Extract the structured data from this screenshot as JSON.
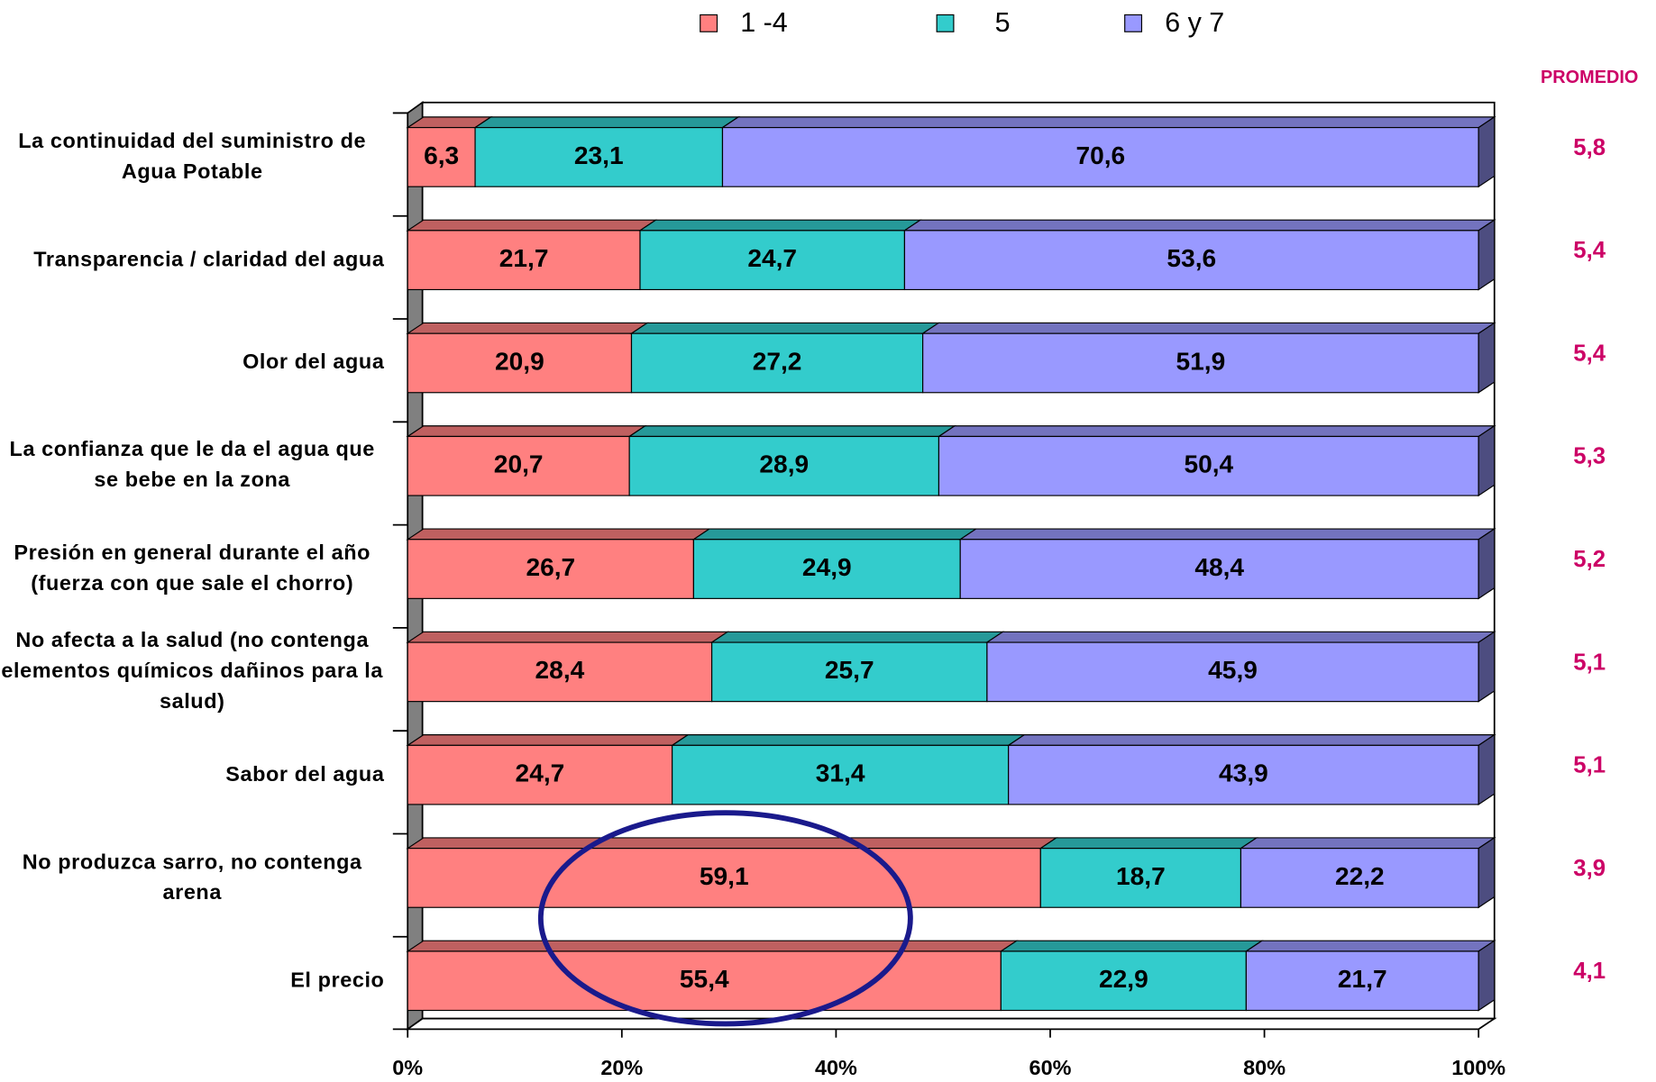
{
  "chart_data": {
    "type": "stacked_barh",
    "categories": [
      "La continuidad del suministro de Agua Potable",
      "Transparencia / claridad del agua",
      "Olor del agua",
      "La confianza que le da el agua que se bebe en la zona",
      "Presión en general durante el año (fuerza con que sale el chorro)",
      "No afecta a la salud (no contenga elementos químicos dañinos para la salud)",
      "Sabor del agua",
      "No produzca sarro, no contenga arena",
      "El precio"
    ],
    "series": [
      {
        "name": "1 -4",
        "color": "#ff8080",
        "values": [
          6.3,
          21.7,
          20.9,
          20.7,
          26.7,
          28.4,
          24.7,
          59.1,
          55.4
        ],
        "value_labels": [
          "6,3",
          "21,7",
          "20,9",
          "20,7",
          "26,7",
          "28,4",
          "24,7",
          "59,1",
          "55,4"
        ]
      },
      {
        "name": "5",
        "color": "#33cccc",
        "values": [
          23.1,
          24.7,
          27.2,
          28.9,
          24.9,
          25.7,
          31.4,
          18.7,
          22.9
        ],
        "value_labels": [
          "23,1",
          "24,7",
          "27,2",
          "28,9",
          "24,9",
          "25,7",
          "31,4",
          "18,7",
          "22,9"
        ]
      },
      {
        "name": "6 y 7",
        "color": "#9999ff",
        "values": [
          70.6,
          53.6,
          51.9,
          50.4,
          48.4,
          45.9,
          43.9,
          22.2,
          21.7
        ],
        "value_labels": [
          "70,6",
          "53,6",
          "51,9",
          "50,4",
          "48,4",
          "45,9",
          "43,9",
          "22,2",
          "21,7"
        ]
      }
    ],
    "average_title": "PROMEDIO",
    "averages": [
      5.8,
      5.4,
      5.4,
      5.3,
      5.2,
      5.1,
      5.1,
      3.9,
      4.1
    ],
    "average_labels": [
      "5,8",
      "5,4",
      "5,4",
      "5,3",
      "5,2",
      "5,1",
      "5,1",
      "3,9",
      "4,1"
    ],
    "average_color": "#cc0066",
    "xlim": [
      0,
      100
    ],
    "xticks": [
      {
        "value": 0,
        "label": "0%"
      },
      {
        "value": 20,
        "label": "20%"
      },
      {
        "value": 40,
        "label": "40%"
      },
      {
        "value": 60,
        "label": "60%"
      },
      {
        "value": 80,
        "label": "80%"
      },
      {
        "value": 100,
        "label": "100%"
      }
    ],
    "legend": "top"
  }
}
